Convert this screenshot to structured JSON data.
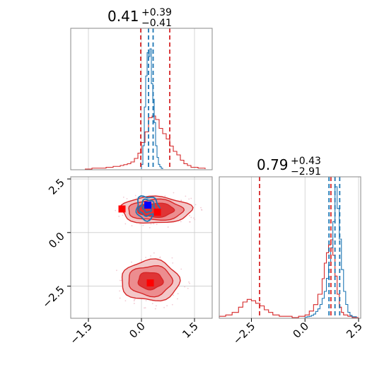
{
  "chart_data": {
    "type": "corner",
    "params": [
      {
        "title_value": "0.41",
        "title_plus": "+0.39",
        "title_minus": "−0.41"
      },
      {
        "title_value": "0.79",
        "title_plus": "+0.43",
        "title_minus": "−2.91"
      }
    ],
    "colors": {
      "red": "#d62728",
      "blue": "#1f77b4",
      "grid": "#cccccc",
      "frame": "#888888"
    },
    "panel_x": {
      "xlim": [
        -2.0,
        2.0
      ],
      "ticks": [
        -1.5,
        0.0,
        1.5
      ],
      "tick_labels": [
        "−1.5",
        "0.0",
        "1.5"
      ]
    },
    "panel_y": {
      "xlim": [
        -4.0,
        2.6
      ],
      "ylim": [
        -4.0,
        2.6
      ],
      "ticks": [
        -2.5,
        0.0,
        2.5
      ],
      "tick_labels": [
        "−2.5",
        "0.0",
        "2.5"
      ]
    },
    "hist1": {
      "red_vlines": [
        -0.02,
        0.8
      ],
      "blue_vlines": [
        0.2,
        0.33
      ],
      "red_bins": [
        -1.6,
        -1.4,
        -1.2,
        -1.0,
        -0.9,
        -0.8,
        -0.7,
        -0.6,
        -0.5,
        -0.4,
        -0.3,
        -0.2,
        -0.1,
        0.0,
        0.1,
        0.2,
        0.3,
        0.4,
        0.5,
        0.6,
        0.7,
        0.8,
        0.9,
        1.0,
        1.1,
        1.2,
        1.3,
        1.4,
        1.6,
        1.8
      ],
      "red_counts": [
        0,
        1,
        1,
        2,
        2,
        3,
        3,
        4,
        5,
        6,
        8,
        12,
        18,
        30,
        42,
        58,
        60,
        56,
        46,
        40,
        34,
        26,
        20,
        16,
        10,
        6,
        4,
        2,
        1
      ],
      "blue_bins": [
        0.0,
        0.04,
        0.08,
        0.12,
        0.16,
        0.2,
        0.24,
        0.28,
        0.32,
        0.36,
        0.4,
        0.44,
        0.48,
        0.52,
        0.56,
        0.6
      ],
      "blue_counts": [
        6,
        30,
        80,
        120,
        150,
        145,
        155,
        110,
        90,
        60,
        30,
        15,
        6,
        3,
        1
      ],
      "blue_small_bins": [
        -0.2,
        -0.1,
        0.0
      ],
      "blue_small_counts": [
        1,
        3
      ]
    },
    "hist2": {
      "red_vlines": [
        -2.12,
        1.21
      ],
      "blue_vlines": [
        1.12,
        1.4,
        1.62
      ],
      "red_bins": [
        -4.0,
        -3.7,
        -3.4,
        -3.1,
        -2.9,
        -2.7,
        -2.5,
        -2.3,
        -2.1,
        -1.9,
        -1.7,
        -1.5,
        -1.2,
        -0.9,
        -0.6,
        -0.3,
        0.0,
        0.2,
        0.4,
        0.6,
        0.8,
        0.9,
        1.0,
        1.1,
        1.2,
        1.3,
        1.4,
        1.5,
        1.6,
        1.7,
        1.8,
        2.0,
        2.2,
        2.5
      ],
      "red_counts": [
        1,
        2,
        4,
        8,
        12,
        14,
        13,
        11,
        9,
        6,
        4,
        2,
        1,
        1,
        0,
        1,
        2,
        5,
        10,
        18,
        30,
        42,
        50,
        56,
        60,
        48,
        32,
        18,
        8,
        4,
        2,
        1,
        0
      ],
      "blue_bins": [
        0.0,
        0.1,
        0.2,
        0.3,
        0.4,
        0.5,
        0.6,
        0.7,
        0.8,
        0.9,
        1.0,
        1.1,
        1.2,
        1.3,
        1.4,
        1.5,
        1.6,
        1.7,
        1.8,
        1.9,
        2.0,
        2.1,
        2.2,
        2.4
      ],
      "blue_counts": [
        1,
        2,
        3,
        5,
        8,
        14,
        20,
        30,
        44,
        60,
        90,
        120,
        160,
        220,
        300,
        250,
        180,
        110,
        60,
        30,
        12,
        5,
        2
      ]
    },
    "scatter": {
      "red_markers": [
        [
          -0.55,
          1.1
        ],
        [
          0.45,
          0.95
        ],
        [
          0.25,
          -2.35
        ]
      ],
      "blue_marker": [
        0.18,
        1.28
      ],
      "red_clusters": [
        {
          "cx": 0.4,
          "cy": 1.05,
          "levels": [
            [
              1.0,
              0.62
            ],
            [
              0.78,
              0.48
            ],
            [
              0.52,
              0.32
            ]
          ]
        },
        {
          "cx": 0.25,
          "cy": -2.25,
          "levels": [
            [
              0.82,
              0.95
            ],
            [
              0.62,
              0.7
            ],
            [
              0.35,
              0.4
            ]
          ]
        }
      ],
      "blue_cluster": {
        "cx": 0.17,
        "cy": 1.15,
        "levels": [
          [
            0.32,
            0.55
          ],
          [
            0.22,
            0.38
          ],
          [
            0.12,
            0.2
          ]
        ]
      }
    }
  }
}
